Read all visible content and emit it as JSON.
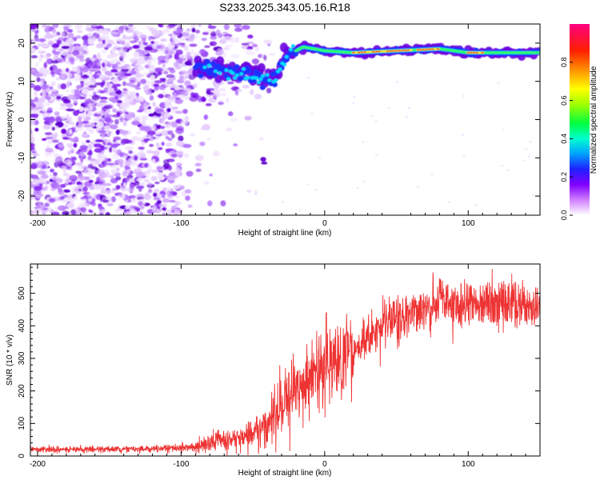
{
  "title": "S233.2025.343.05.16.R18",
  "chart_data": [
    {
      "type": "heatmap",
      "name": "spectrogram",
      "xlabel": "Height of straight line (km)",
      "ylabel": "Frequency (Hz)",
      "xlim": [
        -205,
        150
      ],
      "ylim": [
        -25,
        25
      ],
      "xticks": [
        -200,
        -100,
        0,
        100
      ],
      "yticks": [
        20,
        10,
        0,
        -10,
        -20
      ],
      "ytick_labels": [
        "20",
        "10",
        "0",
        "-10",
        "-20"
      ],
      "colorbar": {
        "label": "Normalized spectral amplitude",
        "range": [
          0,
          1
        ],
        "ticks": [
          0.0,
          0.2,
          0.4,
          0.6,
          0.8
        ],
        "tick_labels": [
          "0.0",
          "0.2",
          "0.4",
          "0.6",
          "0.8"
        ],
        "colors": [
          "#ffffff",
          "#c000ff",
          "#4000ff",
          "#0040ff",
          "#00e0ff",
          "#00ff40",
          "#ffff00",
          "#ff8000",
          "#ff0000",
          "#ff0080"
        ]
      },
      "signal_track": {
        "description_points_km_hz": [
          [
            -90,
            14
          ],
          [
            -75,
            13
          ],
          [
            -60,
            12
          ],
          [
            -45,
            11
          ],
          [
            -35,
            11
          ],
          [
            -25,
            17
          ],
          [
            -15,
            19
          ],
          [
            0,
            18
          ],
          [
            20,
            17.5
          ],
          [
            50,
            18
          ],
          [
            80,
            18.5
          ],
          [
            100,
            17.5
          ],
          [
            150,
            17.5
          ]
        ],
        "strong_segments_km": [
          [
            20,
            60
          ],
          [
            65,
            80
          ],
          [
            100,
            110
          ]
        ]
      },
      "noise_region_km": [
        -205,
        -30
      ]
    },
    {
      "type": "line",
      "name": "snr",
      "xlabel": "Height of straight line (km)",
      "ylabel": "SNR (10 * v/v)",
      "xlim": [
        -205,
        150
      ],
      "ylim": [
        0,
        590
      ],
      "xticks": [
        -200,
        -100,
        0,
        100
      ],
      "yticks": [
        0,
        100,
        200,
        300,
        400,
        500
      ],
      "series": [
        {
          "name": "SNR",
          "color": "#ee3333",
          "trend_x": [
            -205,
            -120,
            -90,
            -80,
            -70,
            -60,
            -50,
            -40,
            -30,
            -20,
            -10,
            0,
            10,
            20,
            30,
            40,
            50,
            60,
            70,
            80,
            90,
            100,
            110,
            120,
            130,
            140,
            150
          ],
          "trend_y": [
            20,
            22,
            28,
            40,
            50,
            55,
            70,
            100,
            150,
            200,
            245,
            270,
            290,
            330,
            360,
            400,
            420,
            440,
            460,
            470,
            470,
            465,
            470,
            465,
            465,
            460,
            450
          ]
        }
      ]
    }
  ]
}
